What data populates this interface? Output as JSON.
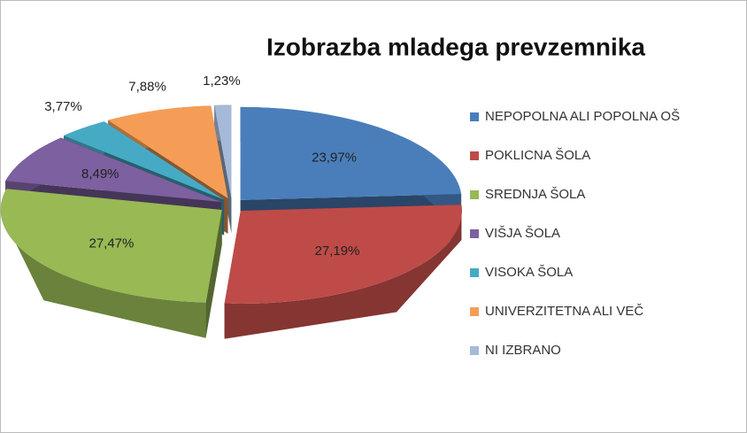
{
  "chart_data": {
    "type": "pie",
    "title": "Izobrazba mladega prevzemnika",
    "categories": [
      "NEPOPOLNA ALI POPOLNA OŠ",
      "POKLICNA ŠOLA",
      "SREDNJA ŠOLA",
      "VIŠJA ŠOLA",
      "VISOKA ŠOLA",
      "UNIVERZITETNA ALI VEČ",
      "NI IZBRANO"
    ],
    "values": [
      23.97,
      27.19,
      27.47,
      8.49,
      3.77,
      7.88,
      1.23
    ],
    "value_labels": [
      "23,97%",
      "27,19%",
      "27,47%",
      "8,49%",
      "3,77%",
      "7,88%",
      "1,23%"
    ],
    "colors": [
      "#4a7ebb",
      "#be4b48",
      "#98b954",
      "#7d60a0",
      "#46aac5",
      "#f59d56",
      "#a5b9d9"
    ],
    "legend": "right"
  }
}
